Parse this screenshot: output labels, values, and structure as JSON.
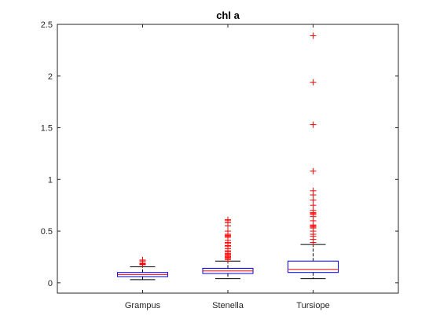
{
  "chart_data": {
    "type": "boxplot",
    "title": "chl a",
    "xlabel": "",
    "ylabel": "",
    "ylim": [
      -0.1,
      2.5
    ],
    "yticks": [
      0,
      0.5,
      1,
      1.5,
      2,
      2.5
    ],
    "ytick_labels": [
      "0",
      "0.5",
      "1",
      "1.5",
      "2",
      "2.5"
    ],
    "grid": false,
    "colors": {
      "box": "#0000ff",
      "median": "#ff0000",
      "outlier": "#ff0000",
      "whisker": "#000000",
      "axis": "#262626"
    },
    "categories": [
      "Grampus",
      "Stenella",
      "Tursiope"
    ],
    "boxes": [
      {
        "name": "Grampus",
        "whisker_low": 0.03,
        "q1": 0.06,
        "median": 0.08,
        "q3": 0.1,
        "whisker_high": 0.155,
        "outliers": [
          0.175,
          0.18,
          0.185,
          0.19,
          0.21,
          0.22
        ]
      },
      {
        "name": "Stenella",
        "whisker_low": 0.04,
        "q1": 0.09,
        "median": 0.115,
        "q3": 0.14,
        "whisker_high": 0.21,
        "outliers": [
          0.225,
          0.235,
          0.245,
          0.255,
          0.265,
          0.275,
          0.285,
          0.3,
          0.31,
          0.33,
          0.35,
          0.36,
          0.38,
          0.39,
          0.41,
          0.44,
          0.45,
          0.46,
          0.47,
          0.5,
          0.55,
          0.58,
          0.6,
          0.61
        ]
      },
      {
        "name": "Tursiope",
        "whisker_low": 0.04,
        "q1": 0.1,
        "median": 0.13,
        "q3": 0.21,
        "whisker_high": 0.37,
        "outliers": [
          0.39,
          0.42,
          0.45,
          0.47,
          0.5,
          0.53,
          0.54,
          0.55,
          0.56,
          0.6,
          0.64,
          0.66,
          0.67,
          0.68,
          0.7,
          0.75,
          0.8,
          0.85,
          0.89,
          1.08,
          1.53,
          1.94,
          2.39
        ]
      }
    ]
  }
}
